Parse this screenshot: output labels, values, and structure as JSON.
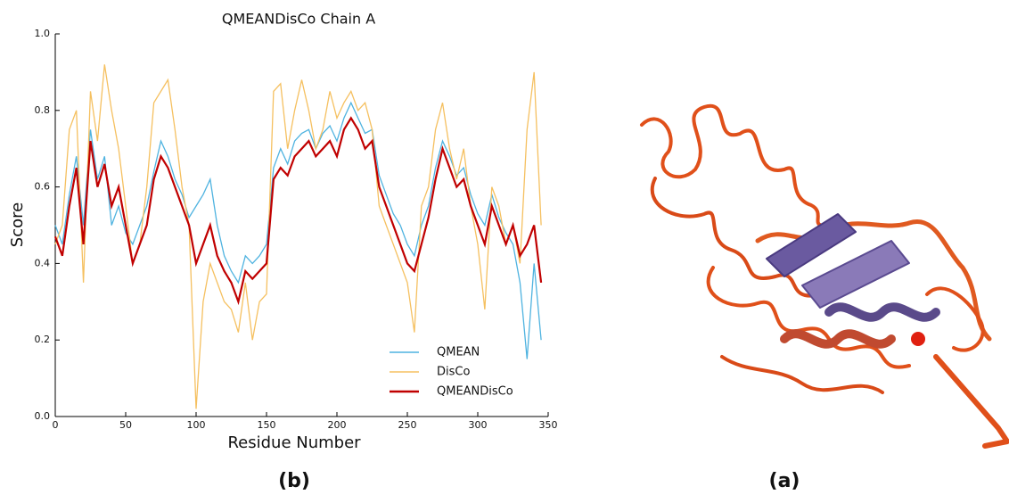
{
  "chart_data": {
    "type": "line",
    "title": "QMEANDisCo Chain A",
    "x_label": "Residue Number",
    "y_label": "Score",
    "x": [
      0,
      5,
      10,
      15,
      20,
      25,
      30,
      35,
      40,
      45,
      50,
      55,
      60,
      65,
      70,
      75,
      80,
      85,
      90,
      95,
      100,
      105,
      110,
      115,
      120,
      125,
      130,
      135,
      140,
      145,
      150,
      155,
      160,
      165,
      170,
      175,
      180,
      185,
      190,
      195,
      200,
      205,
      210,
      215,
      220,
      225,
      230,
      235,
      240,
      245,
      250,
      255,
      260,
      265,
      270,
      275,
      280,
      285,
      290,
      295,
      300,
      305,
      310,
      315,
      320,
      325,
      330,
      335,
      340,
      345
    ],
    "series": [
      {
        "name": "QMEAN",
        "color": "#4fb3e0",
        "values": [
          0.5,
          0.45,
          0.58,
          0.68,
          0.5,
          0.75,
          0.62,
          0.68,
          0.5,
          0.55,
          0.48,
          0.45,
          0.5,
          0.55,
          0.64,
          0.72,
          0.68,
          0.62,
          0.58,
          0.52,
          0.55,
          0.58,
          0.62,
          0.5,
          0.42,
          0.38,
          0.35,
          0.42,
          0.4,
          0.42,
          0.45,
          0.65,
          0.7,
          0.66,
          0.72,
          0.74,
          0.75,
          0.7,
          0.74,
          0.76,
          0.72,
          0.78,
          0.82,
          0.78,
          0.74,
          0.75,
          0.63,
          0.58,
          0.53,
          0.5,
          0.45,
          0.42,
          0.5,
          0.55,
          0.65,
          0.72,
          0.68,
          0.63,
          0.65,
          0.58,
          0.53,
          0.5,
          0.58,
          0.52,
          0.48,
          0.45,
          0.35,
          0.15,
          0.4,
          0.2
        ]
      },
      {
        "name": "DisCo",
        "color": "#f5c060",
        "values": [
          0.45,
          0.5,
          0.75,
          0.8,
          0.35,
          0.85,
          0.72,
          0.92,
          0.8,
          0.7,
          0.55,
          0.4,
          0.45,
          0.6,
          0.82,
          0.85,
          0.88,
          0.75,
          0.6,
          0.5,
          0.02,
          0.3,
          0.4,
          0.35,
          0.3,
          0.28,
          0.22,
          0.35,
          0.2,
          0.3,
          0.32,
          0.85,
          0.87,
          0.7,
          0.8,
          0.88,
          0.8,
          0.7,
          0.75,
          0.85,
          0.78,
          0.82,
          0.85,
          0.8,
          0.82,
          0.75,
          0.55,
          0.5,
          0.45,
          0.4,
          0.35,
          0.22,
          0.55,
          0.6,
          0.75,
          0.82,
          0.7,
          0.62,
          0.7,
          0.55,
          0.45,
          0.28,
          0.6,
          0.55,
          0.45,
          0.5,
          0.4,
          0.75,
          0.9,
          0.5
        ]
      },
      {
        "name": "QMEANDisCo",
        "color": "#c00000",
        "values": [
          0.47,
          0.42,
          0.55,
          0.65,
          0.45,
          0.72,
          0.6,
          0.66,
          0.55,
          0.6,
          0.5,
          0.4,
          0.45,
          0.5,
          0.62,
          0.68,
          0.65,
          0.6,
          0.55,
          0.5,
          0.4,
          0.45,
          0.5,
          0.42,
          0.38,
          0.35,
          0.3,
          0.38,
          0.36,
          0.38,
          0.4,
          0.62,
          0.65,
          0.63,
          0.68,
          0.7,
          0.72,
          0.68,
          0.7,
          0.72,
          0.68,
          0.75,
          0.78,
          0.75,
          0.7,
          0.72,
          0.6,
          0.55,
          0.5,
          0.45,
          0.4,
          0.38,
          0.45,
          0.52,
          0.62,
          0.7,
          0.65,
          0.6,
          0.62,
          0.55,
          0.5,
          0.45,
          0.55,
          0.5,
          0.45,
          0.5,
          0.42,
          0.45,
          0.5,
          0.35
        ]
      }
    ],
    "xlim": [
      0,
      350
    ],
    "xticks": [
      0,
      50,
      100,
      150,
      200,
      250,
      300,
      350
    ],
    "ylim": [
      0,
      1
    ],
    "yticks": [
      {
        "value": 0,
        "label": "0.0"
      },
      0.2,
      0.4,
      0.6,
      0.8,
      {
        "value": 1,
        "label": "1.0"
      }
    ],
    "legend": "lower right",
    "panel_labels": [
      "(b)",
      "(a)"
    ]
  }
}
